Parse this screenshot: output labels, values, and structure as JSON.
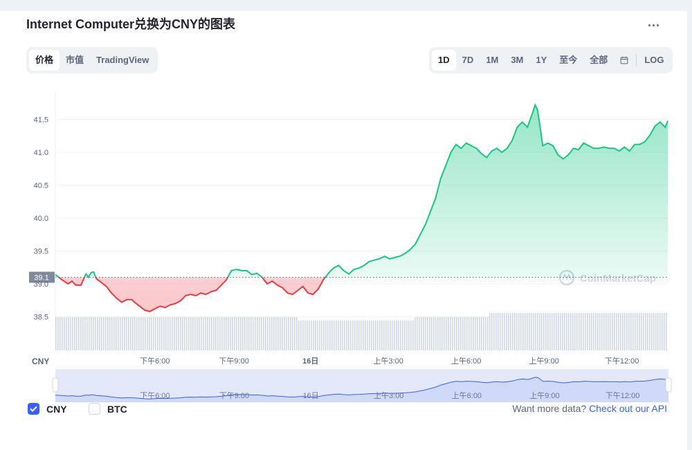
{
  "header": {
    "title": "Internet Computer兑换为CNY的图表",
    "more_label": "..."
  },
  "type_tabs": [
    {
      "label": "价格",
      "active": true
    },
    {
      "label": "市值",
      "active": false
    },
    {
      "label": "TradingView",
      "active": false
    }
  ],
  "range_tabs": [
    {
      "label": "1D",
      "active": true
    },
    {
      "label": "7D",
      "active": false
    },
    {
      "label": "1M",
      "active": false
    },
    {
      "label": "3M",
      "active": false
    },
    {
      "label": "1Y",
      "active": false
    },
    {
      "label": "至今",
      "active": false
    },
    {
      "label": "全部",
      "active": false
    }
  ],
  "log_label": "LOG",
  "legend": {
    "cny": {
      "label": "CNY",
      "checked": true
    },
    "btc": {
      "label": "BTC",
      "checked": false
    }
  },
  "api": {
    "prefix": "Want more data?",
    "link": "Check out our API"
  },
  "watermark": "CoinMarketCap",
  "colors": {
    "up": "#16c784",
    "down": "#ea3943",
    "accent": "#3861fb",
    "volume": "#cfd6e4"
  },
  "chart_data": {
    "type": "line",
    "ylabel": "CNY",
    "y_ticks": [
      38.5,
      39.0,
      39.5,
      40.0,
      40.5,
      41.0,
      41.5
    ],
    "ylim": [
      38.0,
      41.9
    ],
    "reference_value": 39.1,
    "reference_label": "39.1",
    "x_tick_labels": [
      "下午6:00",
      "下午9:00",
      "16日",
      "上午3:00",
      "上午6:00",
      "上午9:00",
      "下午12:00"
    ],
    "x_tick_hours": [
      3.9,
      7.0,
      10.0,
      13.05,
      16.1,
      19.15,
      22.2
    ],
    "x_range_hours": [
      0,
      24
    ],
    "grid": true,
    "series": [
      {
        "values": [
          [
            0.0,
            39.14
          ],
          [
            0.3,
            39.05
          ],
          [
            0.5,
            39.0
          ],
          [
            0.65,
            39.04
          ],
          [
            0.8,
            38.98
          ],
          [
            1.0,
            38.98
          ],
          [
            1.2,
            39.15
          ],
          [
            1.3,
            39.1
          ],
          [
            1.4,
            39.17
          ],
          [
            1.5,
            39.18
          ],
          [
            1.6,
            39.08
          ],
          [
            1.8,
            39.02
          ],
          [
            2.0,
            38.96
          ],
          [
            2.2,
            38.86
          ],
          [
            2.4,
            38.78
          ],
          [
            2.6,
            38.72
          ],
          [
            2.8,
            38.76
          ],
          [
            3.0,
            38.76
          ],
          [
            3.1,
            38.72
          ],
          [
            3.3,
            38.66
          ],
          [
            3.5,
            38.6
          ],
          [
            3.7,
            38.58
          ],
          [
            3.9,
            38.62
          ],
          [
            4.1,
            38.66
          ],
          [
            4.3,
            38.64
          ],
          [
            4.5,
            38.68
          ],
          [
            4.7,
            38.7
          ],
          [
            4.9,
            38.74
          ],
          [
            5.1,
            38.82
          ],
          [
            5.3,
            38.84
          ],
          [
            5.5,
            38.82
          ],
          [
            5.7,
            38.86
          ],
          [
            5.9,
            38.84
          ],
          [
            6.1,
            38.88
          ],
          [
            6.3,
            38.9
          ],
          [
            6.5,
            38.98
          ],
          [
            6.7,
            39.06
          ],
          [
            6.9,
            39.2
          ],
          [
            7.1,
            39.22
          ],
          [
            7.3,
            39.2
          ],
          [
            7.5,
            39.2
          ],
          [
            7.7,
            39.14
          ],
          [
            7.9,
            39.16
          ],
          [
            8.1,
            39.1
          ],
          [
            8.3,
            39.0
          ],
          [
            8.5,
            39.04
          ],
          [
            8.7,
            38.98
          ],
          [
            8.9,
            38.94
          ],
          [
            9.1,
            38.86
          ],
          [
            9.3,
            38.84
          ],
          [
            9.5,
            38.9
          ],
          [
            9.7,
            38.96
          ],
          [
            9.9,
            38.86
          ],
          [
            10.1,
            38.84
          ],
          [
            10.3,
            38.92
          ],
          [
            10.5,
            39.06
          ],
          [
            10.7,
            39.16
          ],
          [
            10.9,
            39.24
          ],
          [
            11.1,
            39.28
          ],
          [
            11.3,
            39.2
          ],
          [
            11.5,
            39.15
          ],
          [
            11.7,
            39.22
          ],
          [
            11.9,
            39.24
          ],
          [
            12.1,
            39.28
          ],
          [
            12.3,
            39.34
          ],
          [
            12.5,
            39.36
          ],
          [
            12.7,
            39.38
          ],
          [
            12.9,
            39.42
          ],
          [
            13.1,
            39.38
          ],
          [
            13.3,
            39.4
          ],
          [
            13.5,
            39.42
          ],
          [
            13.7,
            39.46
          ],
          [
            13.9,
            39.52
          ],
          [
            14.1,
            39.6
          ],
          [
            14.3,
            39.75
          ],
          [
            14.5,
            39.9
          ],
          [
            14.7,
            40.1
          ],
          [
            14.9,
            40.3
          ],
          [
            15.1,
            40.6
          ],
          [
            15.3,
            40.8
          ],
          [
            15.5,
            41.0
          ],
          [
            15.7,
            41.12
          ],
          [
            15.9,
            41.06
          ],
          [
            16.1,
            41.14
          ],
          [
            16.3,
            41.1
          ],
          [
            16.5,
            41.06
          ],
          [
            16.7,
            40.98
          ],
          [
            16.9,
            40.92
          ],
          [
            17.1,
            41.02
          ],
          [
            17.3,
            41.06
          ],
          [
            17.5,
            41.0
          ],
          [
            17.7,
            41.06
          ],
          [
            17.9,
            41.18
          ],
          [
            18.1,
            41.38
          ],
          [
            18.3,
            41.46
          ],
          [
            18.5,
            41.38
          ],
          [
            18.7,
            41.6
          ],
          [
            18.8,
            41.72
          ],
          [
            18.9,
            41.64
          ],
          [
            19.1,
            41.1
          ],
          [
            19.3,
            41.14
          ],
          [
            19.5,
            41.1
          ],
          [
            19.7,
            40.96
          ],
          [
            19.9,
            40.9
          ],
          [
            20.1,
            40.96
          ],
          [
            20.3,
            41.06
          ],
          [
            20.5,
            41.04
          ],
          [
            20.7,
            41.14
          ],
          [
            20.9,
            41.1
          ],
          [
            21.1,
            41.06
          ],
          [
            21.3,
            41.06
          ],
          [
            21.5,
            41.08
          ],
          [
            21.7,
            41.06
          ],
          [
            21.9,
            41.06
          ],
          [
            22.1,
            41.02
          ],
          [
            22.3,
            41.08
          ],
          [
            22.5,
            41.02
          ],
          [
            22.7,
            41.12
          ],
          [
            22.9,
            41.12
          ],
          [
            23.1,
            41.16
          ],
          [
            23.3,
            41.26
          ],
          [
            23.5,
            41.4
          ],
          [
            23.7,
            41.46
          ],
          [
            23.9,
            41.38
          ],
          [
            24.0,
            41.48
          ]
        ]
      }
    ]
  }
}
